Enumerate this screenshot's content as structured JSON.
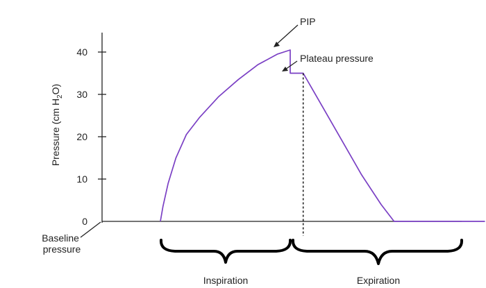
{
  "chart_data": {
    "type": "line",
    "ylabel": "Pressure (cm H",
    "ylabel_sub": "2",
    "ylabel_end": "O)",
    "ylim": [
      0,
      45
    ],
    "yticks": [
      0,
      10,
      20,
      30,
      40
    ],
    "series": [
      {
        "color": "#7a3fc4",
        "points": [
          [
            0.0,
            0
          ],
          [
            0.2,
            3.5
          ],
          [
            0.6,
            9
          ],
          [
            1.2,
            15
          ],
          [
            2.0,
            20.5
          ],
          [
            3.0,
            24.5
          ],
          [
            4.5,
            29.5
          ],
          [
            6.0,
            33.5
          ],
          [
            7.5,
            37
          ],
          [
            9.0,
            39.5
          ],
          [
            10.0,
            40.5
          ],
          [
            10.0,
            35
          ],
          [
            11.0,
            35
          ],
          [
            12.5,
            27
          ],
          [
            14.0,
            19
          ],
          [
            15.5,
            11
          ],
          [
            17.0,
            4
          ],
          [
            18.0,
            0
          ],
          [
            25.0,
            0
          ]
        ]
      }
    ],
    "annotations": {
      "pip": "PIP",
      "plateau": "Plateau pressure",
      "baseline_line1": "Baseline",
      "baseline_line2": "pressure",
      "inspiration": "Inspiration",
      "expiration": "Expiration"
    },
    "grid": false
  }
}
